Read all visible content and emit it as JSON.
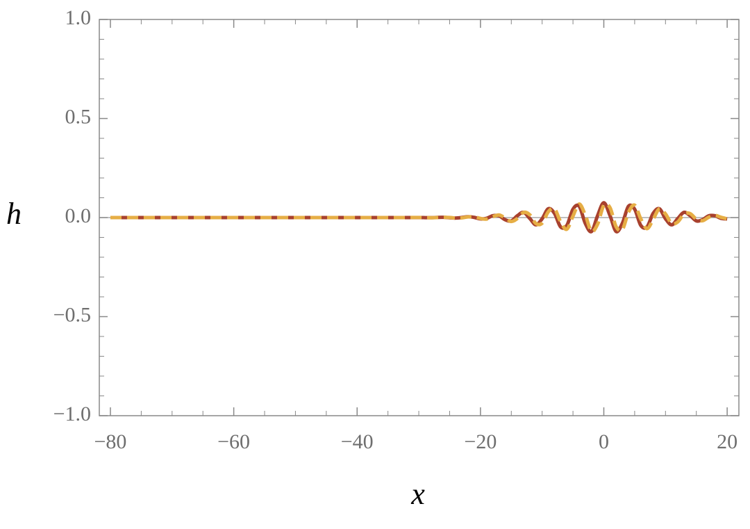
{
  "chart_data": {
    "type": "line",
    "x_label": "x",
    "y_label": "h",
    "x": [
      -80,
      -70,
      -60,
      -50,
      -40,
      -35,
      -30,
      -29,
      -28,
      -27,
      -26,
      -25,
      -24,
      -23,
      -22,
      -21,
      -20,
      -19,
      -18,
      -17,
      -16,
      -15,
      -14,
      -13,
      -12,
      -11,
      -10,
      -9,
      -8,
      -7,
      -6,
      -5,
      -4,
      -3,
      -2,
      -1,
      0,
      1,
      2,
      3,
      4,
      5,
      6,
      7,
      8,
      9,
      10,
      11,
      12,
      13,
      14,
      15,
      16,
      17,
      18,
      19,
      20
    ],
    "series": [
      {
        "color": "#a8412e",
        "style": "solid",
        "values": [
          0,
          0,
          0,
          0,
          0,
          0,
          0.0002,
          -0.0004,
          -0.0005,
          0.0007,
          0.0012,
          -0.0008,
          -0.0024,
          0.0005,
          0.0043,
          0.0008,
          -0.0067,
          -0.0037,
          0.0093,
          0.0089,
          -0.0108,
          -0.0167,
          0.0098,
          0.0265,
          -0.0045,
          -0.0366,
          -0.0059,
          0.0446,
          0.0213,
          -0.0472,
          -0.0398,
          0.0424,
          0.0574,
          -0.0295,
          -0.0703,
          0.0106,
          0.075,
          0.0106,
          -0.0703,
          -0.0295,
          0.0574,
          0.0424,
          -0.0398,
          -0.0472,
          0.0213,
          0.0446,
          -0.0059,
          -0.0366,
          -0.0045,
          0.0265,
          0.0098,
          -0.0167,
          -0.0108,
          0.0089,
          0.0093,
          -0.0037,
          -0.0067
        ]
      },
      {
        "color": "#e6ae45",
        "style": "dashed",
        "values": [
          0,
          0,
          0,
          0,
          0,
          0,
          0.0003,
          -0.0002,
          -0.0007,
          0.0001,
          0.0014,
          0.0003,
          -0.0024,
          -0.0015,
          0.0035,
          0.0037,
          -0.0044,
          -0.0076,
          0.0043,
          0.0132,
          -0.0019,
          -0.0198,
          -0.004,
          0.0262,
          0.0141,
          -0.0302,
          -0.0281,
          0.0294,
          0.044,
          -0.0218,
          -0.0587,
          0.0074,
          0.0682,
          0.0122,
          -0.0696,
          -0.0329,
          0.0619,
          0.0505,
          -0.0464,
          -0.061,
          0.0266,
          0.0626,
          -0.0069,
          -0.056,
          -0.0088,
          0.0442,
          0.0183,
          -0.0302,
          -0.0217,
          0.0175,
          0.0201,
          -0.0077,
          -0.016,
          0.0015,
          0.011,
          0.0015,
          -0.0067
        ]
      }
    ],
    "xlim": [
      -81.8,
      21.9
    ],
    "ylim": [
      -1,
      1
    ],
    "xticks": [
      {
        "value": -80,
        "label": "−80"
      },
      {
        "value": -60,
        "label": "−60"
      },
      {
        "value": -40,
        "label": "−40"
      },
      {
        "value": -20,
        "label": "−20"
      },
      0,
      20
    ],
    "yticks": [
      {
        "value": -1,
        "label": "−1.0"
      },
      {
        "value": -0.5,
        "label": "−0.5"
      },
      {
        "value": 0,
        "label": "0.0"
      },
      0.5,
      {
        "value": 1,
        "label": "1.0"
      }
    ],
    "grid": false
  }
}
